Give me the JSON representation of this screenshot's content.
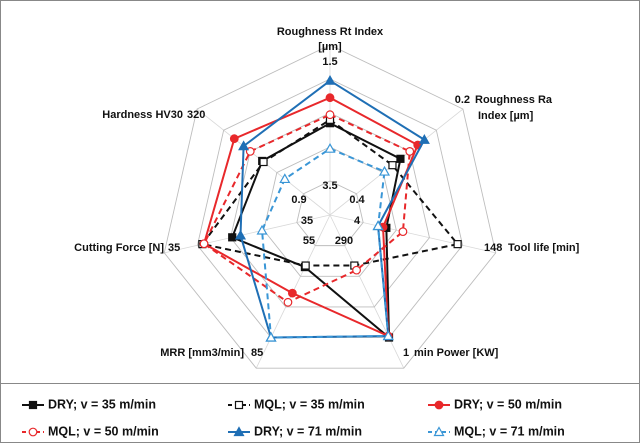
{
  "chart_data": {
    "type": "radar",
    "axes": [
      {
        "label": [
          "Roughness Rt Index",
          "[µm]"
        ],
        "outer": 1.5,
        "inner": 3.5
      },
      {
        "label": [
          "Roughness Ra",
          "Index [µm]"
        ],
        "outer": 0.2,
        "inner": 0.4
      },
      {
        "label": [
          "Tool life [min]"
        ],
        "outer": 148,
        "inner": 0.9
      },
      {
        "label": [
          "min Power  [KW]"
        ],
        "outer": 1,
        "inner": 4
      },
      {
        "label": [
          "MRR [mm3/min]"
        ],
        "outer": 85,
        "inner": 35
      },
      {
        "label": [
          "Cutting Force [N]"
        ],
        "outer": 35,
        "inner": 55
      },
      {
        "label": [
          "Hardness HV30"
        ],
        "outer": 320,
        "inner": 290
      }
    ],
    "rlim": [
      0,
      1
    ],
    "rticks": [
      0.2,
      0.4,
      0.6,
      0.8,
      1.0
    ],
    "grid": true,
    "legend": "bottom",
    "series": [
      {
        "name": "DRY; v = 35 m/min",
        "color": "#111111",
        "dash": false,
        "marker": "square",
        "filled": true,
        "values": [
          0.54,
          0.53,
          0.34,
          0.8,
          0.34,
          0.59,
          0.51
        ]
      },
      {
        "name": "MQL; v = 35 m/min",
        "color": "#111111",
        "dash": true,
        "marker": "square",
        "filled": false,
        "values": [
          0.56,
          0.47,
          0.77,
          0.33,
          0.33,
          0.77,
          0.5
        ]
      },
      {
        "name": "DRY; v = 50 m/min",
        "color": "#e8282b",
        "dash": false,
        "marker": "circle",
        "filled": true,
        "values": [
          0.69,
          0.66,
          0.32,
          0.79,
          0.51,
          0.76,
          0.72
        ]
      },
      {
        "name": "MQL; v = 50 m/min",
        "color": "#e8282b",
        "dash": true,
        "marker": "circle",
        "filled": false,
        "values": [
          0.59,
          0.6,
          0.44,
          0.36,
          0.57,
          0.76,
          0.6
        ]
      },
      {
        "name": "DRY; v = 71 m/min",
        "color": "#1f6fb5",
        "dash": false,
        "marker": "triangle",
        "filled": true,
        "values": [
          0.79,
          0.71,
          0.29,
          0.79,
          0.8,
          0.54,
          0.65
        ]
      },
      {
        "name": "MQL; v = 71 m/min",
        "color": "#3a96d6",
        "dash": true,
        "marker": "triangle",
        "filled": false,
        "values": [
          0.39,
          0.41,
          0.29,
          0.79,
          0.8,
          0.41,
          0.34
        ]
      }
    ]
  }
}
